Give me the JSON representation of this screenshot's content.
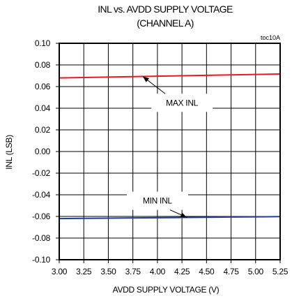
{
  "chart_data": {
    "type": "line",
    "title_line1": "INL vs. AVDD SUPPLY VOLTAGE",
    "title_line2": "(CHANNEL A)",
    "chart_id": "toc10A",
    "xlabel": "AVDD SUPPLY VOLTAGE (V)",
    "ylabel": "INL (LSB)",
    "xlim": [
      3.0,
      5.25
    ],
    "ylim": [
      -0.1,
      0.1
    ],
    "grid": true,
    "x_ticks": [
      3.0,
      3.25,
      3.5,
      3.75,
      4.0,
      4.25,
      4.5,
      4.75,
      5.0,
      5.25
    ],
    "x_tick_labels": [
      "3.00",
      "3.25",
      "3.50",
      "3.75",
      "4.00",
      "4.25",
      "4.50",
      "4.75",
      "5.00",
      "5.25"
    ],
    "y_ticks": [
      0.1,
      0.08,
      0.06,
      0.04,
      0.02,
      0.0,
      -0.02,
      -0.04,
      -0.06,
      -0.08,
      -0.1
    ],
    "y_tick_labels": [
      "0.10",
      "0.08",
      "0.06",
      "0.04",
      "0.02",
      "0.00",
      "-0.02",
      "-0.04",
      "-0.06",
      "-0.08",
      "-0.10"
    ],
    "series": [
      {
        "name": "MAX INL",
        "color": "#e8191f",
        "x": [
          3.0,
          3.25,
          3.5,
          3.75,
          4.0,
          4.25,
          4.5,
          4.75,
          5.0,
          5.25
        ],
        "values": [
          0.068,
          0.0684,
          0.0688,
          0.0692,
          0.0696,
          0.07,
          0.0704,
          0.0708,
          0.0712,
          0.0716
        ]
      },
      {
        "name": "MIN INL",
        "color": "#1f3f9a",
        "x": [
          3.0,
          3.25,
          3.5,
          3.75,
          4.0,
          4.25,
          4.5,
          4.75,
          5.0,
          5.25
        ],
        "values": [
          -0.062,
          -0.0618,
          -0.0616,
          -0.0614,
          -0.0612,
          -0.061,
          -0.0608,
          -0.0606,
          -0.0604,
          -0.0602
        ]
      }
    ],
    "annotations": [
      {
        "text": "MAX INL",
        "series": "MAX INL",
        "point_x": 3.85,
        "label_x": 4.25,
        "label_y": 0.045
      },
      {
        "text": "MIN INL",
        "series": "MIN INL",
        "point_x": 4.3,
        "label_x": 4.0,
        "label_y": -0.0455
      }
    ]
  }
}
